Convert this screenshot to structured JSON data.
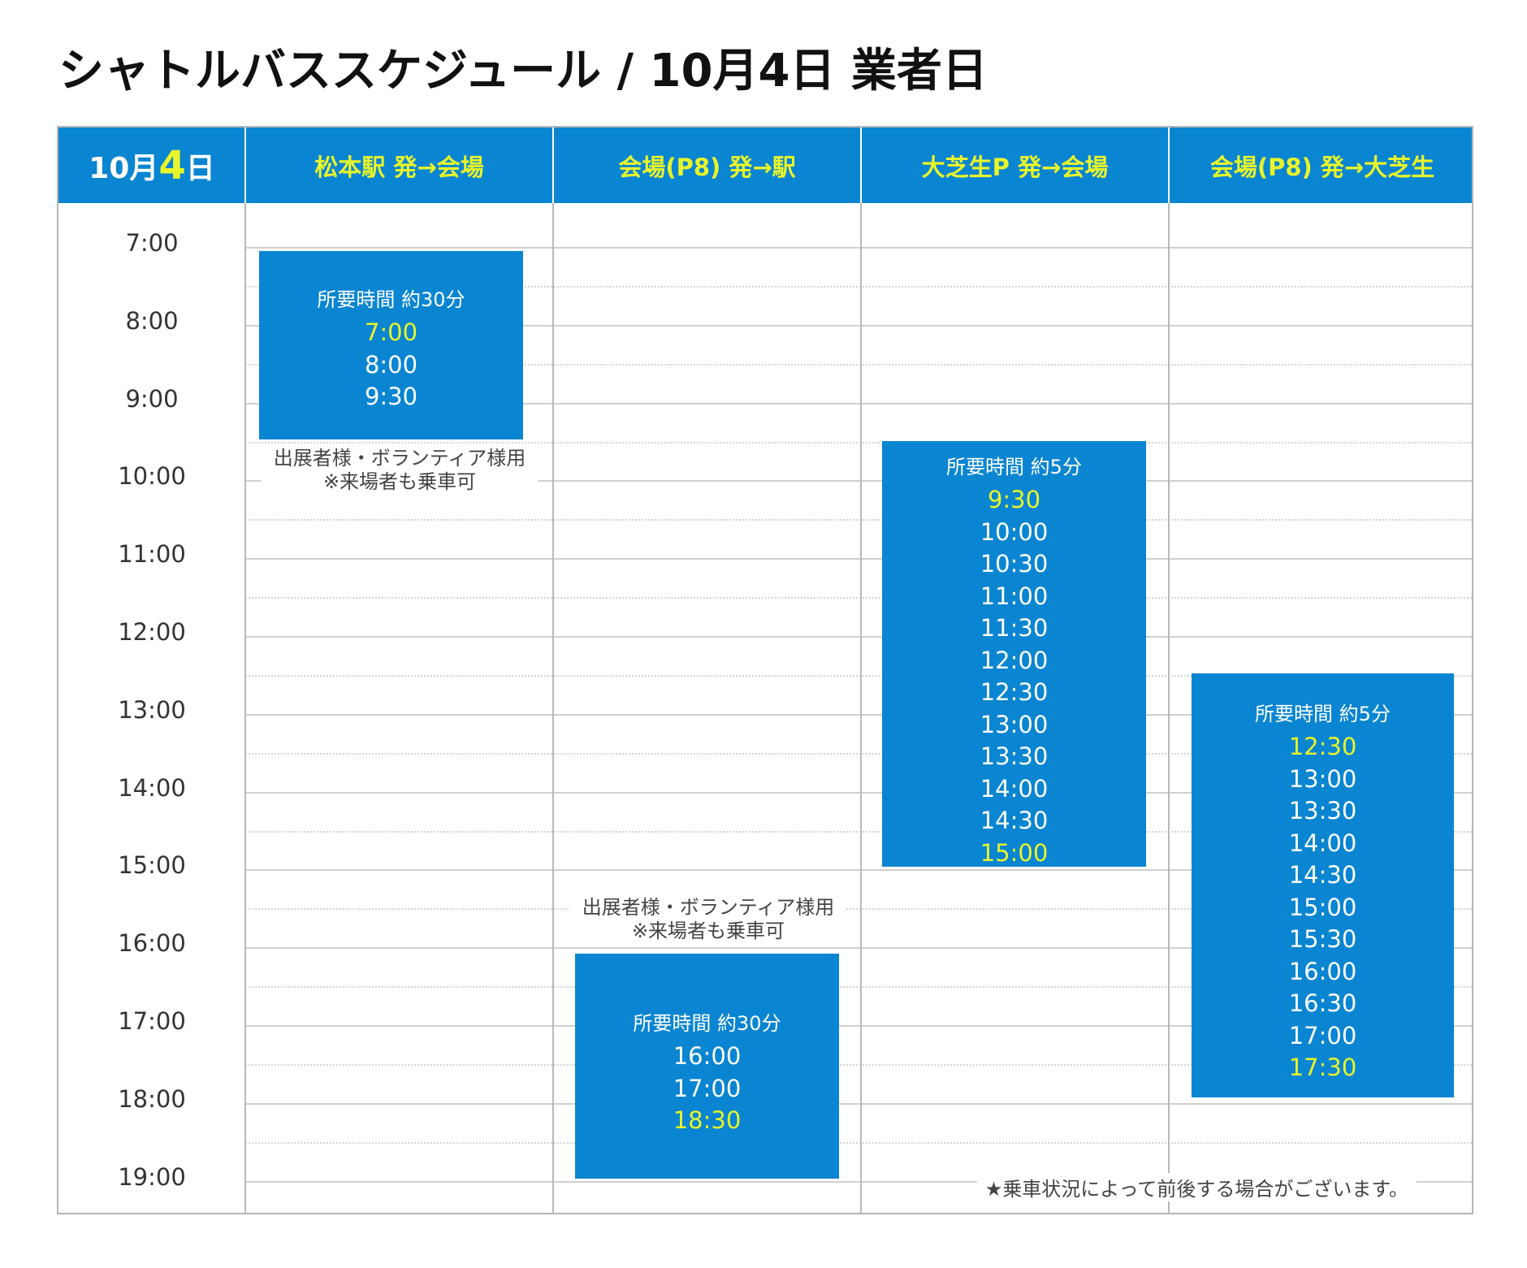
{
  "title": "シャトルバススケジュール / 10月4日 業者日",
  "header": {
    "date_prefix": "10月",
    "date_day": "4",
    "date_suffix": "日",
    "columns": [
      "松本駅 発→会場",
      "会場(P8) 発→駅",
      "大芝生P 発→会場",
      "会場(P8) 発→大芝生"
    ]
  },
  "time_labels": [
    "7:00",
    "8:00",
    "9:00",
    "10:00",
    "11:00",
    "12:00",
    "13:00",
    "14:00",
    "15:00",
    "16:00",
    "17:00",
    "18:00",
    "19:00"
  ],
  "routes": [
    {
      "duration": "所要時間 約30分",
      "times": [
        {
          "t": "7:00",
          "hl": true
        },
        {
          "t": "8:00",
          "hl": false
        },
        {
          "t": "9:30",
          "hl": false
        }
      ],
      "note_l1": "出展者様・ボランティア様用",
      "note_l2": "※来場者も乗車可"
    },
    {
      "duration": "所要時間 約30分",
      "times": [
        {
          "t": "16:00",
          "hl": false
        },
        {
          "t": "17:00",
          "hl": false
        },
        {
          "t": "18:30",
          "hl": true
        }
      ],
      "note_l1": "出展者様・ボランティア様用",
      "note_l2": "※来場者も乗車可"
    },
    {
      "duration": "所要時間 約5分",
      "times": [
        {
          "t": "9:30",
          "hl": true
        },
        {
          "t": "10:00",
          "hl": false
        },
        {
          "t": "10:30",
          "hl": false
        },
        {
          "t": "11:00",
          "hl": false
        },
        {
          "t": "11:30",
          "hl": false
        },
        {
          "t": "12:00",
          "hl": false
        },
        {
          "t": "12:30",
          "hl": false
        },
        {
          "t": "13:00",
          "hl": false
        },
        {
          "t": "13:30",
          "hl": false
        },
        {
          "t": "14:00",
          "hl": false
        },
        {
          "t": "14:30",
          "hl": false
        },
        {
          "t": "15:00",
          "hl": true
        }
      ]
    },
    {
      "duration": "所要時間 約5分",
      "times": [
        {
          "t": "12:30",
          "hl": true
        },
        {
          "t": "13:00",
          "hl": false
        },
        {
          "t": "13:30",
          "hl": false
        },
        {
          "t": "14:00",
          "hl": false
        },
        {
          "t": "14:30",
          "hl": false
        },
        {
          "t": "15:00",
          "hl": false
        },
        {
          "t": "15:30",
          "hl": false
        },
        {
          "t": "16:00",
          "hl": false
        },
        {
          "t": "16:30",
          "hl": false
        },
        {
          "t": "17:00",
          "hl": false
        },
        {
          "t": "17:30",
          "hl": true
        }
      ]
    }
  ],
  "footnote": "★乗車状況によって前後する場合がございます。",
  "colors": {
    "header_blue": "#0a85d1",
    "highlight": "#e8f52a",
    "grid_line": "#cfcfcf"
  }
}
